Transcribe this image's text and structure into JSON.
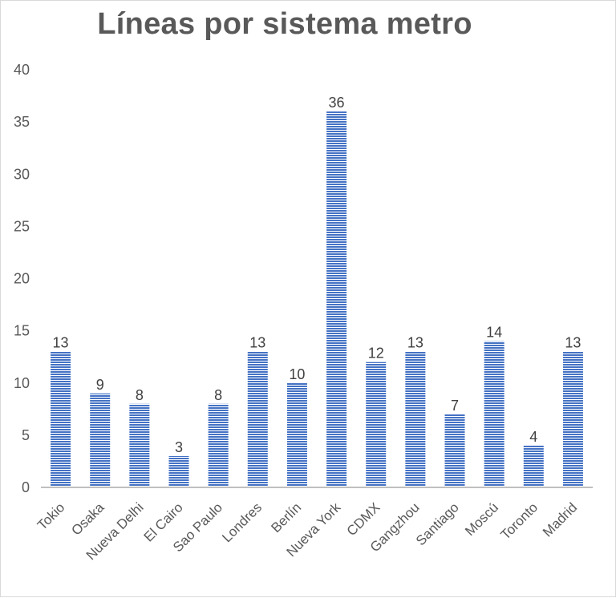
{
  "chart_data": {
    "type": "bar",
    "title": "Líneas por sistema metro",
    "xlabel": "",
    "ylabel": "",
    "ylim": [
      0,
      40
    ],
    "yticks": [
      0,
      5,
      10,
      15,
      20,
      25,
      30,
      35,
      40
    ],
    "grid": false,
    "legend": "none",
    "categories": [
      "Tokio",
      "Osaka",
      "Nueva Delhi",
      "El Cairo",
      "Sao Paulo",
      "Londres",
      "Berlín",
      "Nueva York",
      "CDMX",
      "Gangzhou",
      "Santiago",
      "Moscú",
      "Toronto",
      "Madrid"
    ],
    "values": [
      13,
      9,
      8,
      3,
      8,
      13,
      10,
      36,
      12,
      13,
      7,
      14,
      4,
      13
    ],
    "colors": {
      "bar": "#4472c4",
      "axis": "#bfbfbf",
      "text": "#595959"
    }
  }
}
